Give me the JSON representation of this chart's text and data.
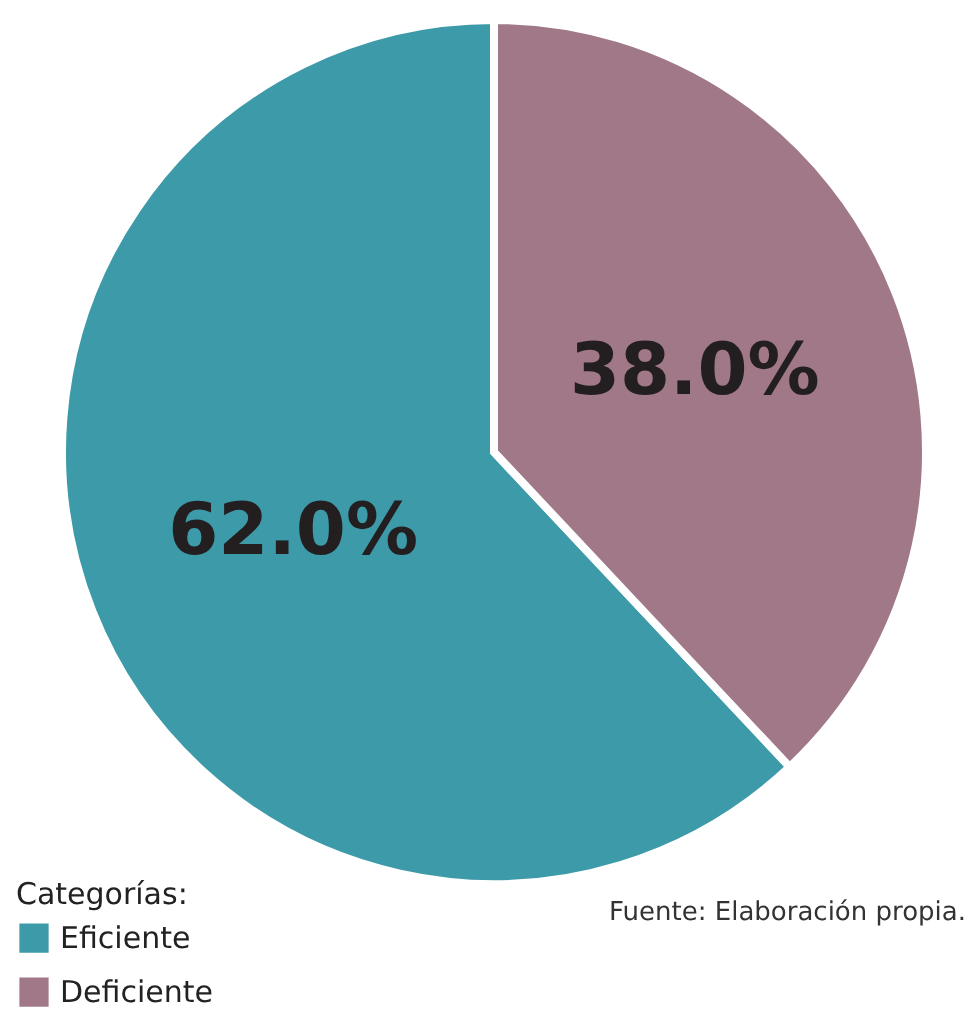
{
  "chart_data": {
    "type": "pie",
    "categories": [
      "Eficiente",
      "Deficiente"
    ],
    "values": [
      62.0,
      38.0
    ],
    "colors": [
      "#3d9aa8",
      "#a07888"
    ],
    "value_labels": [
      "62.0%",
      "38.0%"
    ],
    "legend_title": "Categorías:",
    "legend": "bottom left",
    "annotations": [
      "Fuente: Elaboración propia."
    ]
  }
}
